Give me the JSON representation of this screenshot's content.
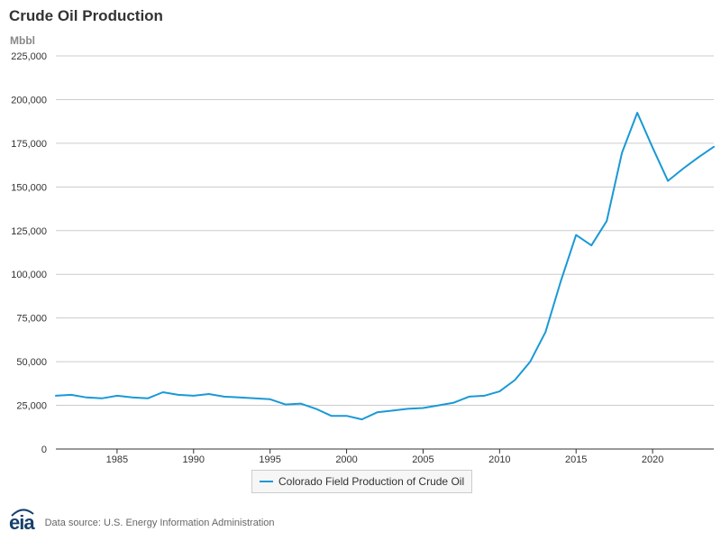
{
  "title": "Crude Oil Production",
  "unit": "Mbbl",
  "source": "Data source: U.S. Energy Information Administration",
  "logo_text": "eia",
  "colors": {
    "line": "#1a99d6",
    "grid": "#cccccc",
    "axis": "#333333"
  },
  "chart_data": {
    "type": "line",
    "title": "Crude Oil Production",
    "ylabel": "Mbbl",
    "xlabel": "",
    "xlim": [
      1981,
      2024
    ],
    "ylim": [
      0,
      225000
    ],
    "yticks": [
      0,
      25000,
      50000,
      75000,
      100000,
      125000,
      150000,
      175000,
      200000,
      225000
    ],
    "ytick_labels": [
      "0",
      "25,000",
      "50,000",
      "75,000",
      "100,000",
      "125,000",
      "150,000",
      "175,000",
      "200,000",
      "225,000"
    ],
    "xticks": [
      1985,
      1990,
      1995,
      2000,
      2005,
      2010,
      2015,
      2020
    ],
    "xtick_labels": [
      "1985",
      "1990",
      "1995",
      "2000",
      "2005",
      "2010",
      "2015",
      "2020"
    ],
    "grid": true,
    "legend_position": "bottom-center",
    "series": [
      {
        "name": "Colorado Field Production of Crude Oil",
        "x": [
          1981,
          1982,
          1983,
          1984,
          1985,
          1986,
          1987,
          1988,
          1989,
          1990,
          1991,
          1992,
          1993,
          1994,
          1995,
          1996,
          1997,
          1998,
          1999,
          2000,
          2001,
          2002,
          2003,
          2004,
          2005,
          2006,
          2007,
          2008,
          2009,
          2010,
          2011,
          2012,
          2013,
          2014,
          2015,
          2016,
          2017,
          2018,
          2019,
          2020,
          2021,
          2022,
          2023,
          2024
        ],
        "values": [
          30500,
          31000,
          29500,
          29000,
          30500,
          29500,
          29000,
          32500,
          31000,
          30500,
          31500,
          30000,
          29500,
          29000,
          28500,
          25500,
          26000,
          23000,
          19000,
          19000,
          17000,
          21000,
          22000,
          23000,
          23500,
          25000,
          26500,
          30000,
          30500,
          33000,
          39500,
          50000,
          67000,
          96000,
          122500,
          116500,
          130500,
          169500,
          192500,
          172500,
          153500,
          160500,
          167000,
          173000
        ]
      }
    ]
  }
}
